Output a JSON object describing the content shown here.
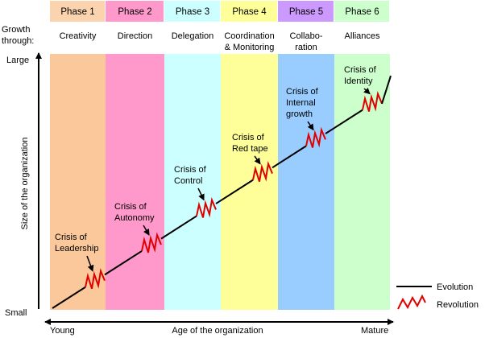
{
  "phases": [
    {
      "label": "Phase 1",
      "growth": [
        "Creativity"
      ]
    },
    {
      "label": "Phase 2",
      "growth": [
        "Direction"
      ]
    },
    {
      "label": "Phase 3",
      "growth": [
        "Delegation"
      ]
    },
    {
      "label": "Phase 4",
      "growth": [
        "Coordination",
        "& Monitoring"
      ]
    },
    {
      "label": "Phase 5",
      "growth": [
        "Collabo-",
        "ration"
      ]
    },
    {
      "label": "Phase 6",
      "growth": [
        "Alliances"
      ]
    }
  ],
  "growth_heading": [
    "Growth",
    "through:"
  ],
  "crises": [
    [
      "Crisis of",
      "Leadership"
    ],
    [
      "Crisis of",
      "Autonomy"
    ],
    [
      "Crisis of",
      "Control"
    ],
    [
      "Crisis of",
      "Red tape"
    ],
    [
      "Crisis of",
      "Internal",
      "growth"
    ],
    [
      "Crisis of",
      "Identity"
    ]
  ],
  "y_axis": {
    "label": "Size of the organization",
    "top": "Large",
    "bottom": "Small"
  },
  "x_axis": {
    "label": "Age of the organization",
    "left": "Young",
    "right": "Mature"
  },
  "legend": {
    "evolution": "Evolution",
    "revolution": "Revolution"
  }
}
